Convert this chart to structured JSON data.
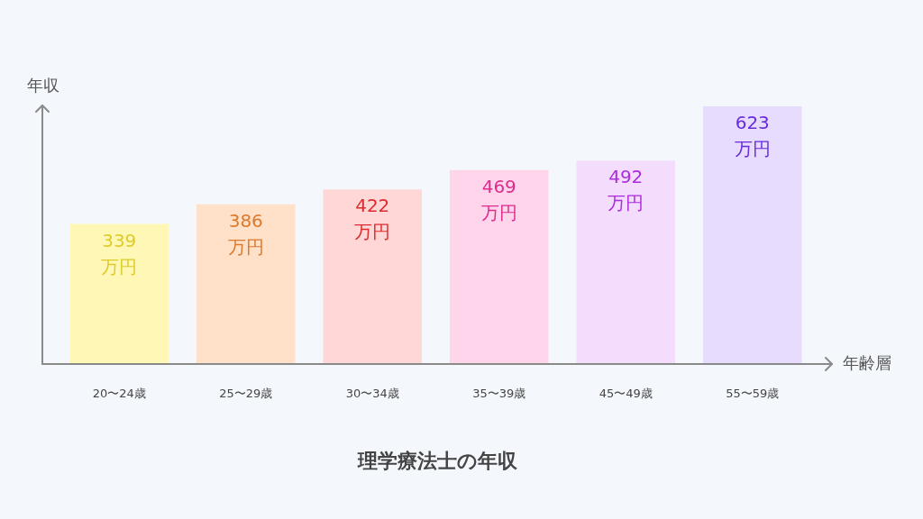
{
  "chart_data": {
    "type": "bar",
    "title": "理学療法士の年収",
    "xlabel": "年齢層",
    "ylabel": "年収",
    "categories": [
      "20〜24歳",
      "25〜29歳",
      "30〜34歳",
      "35〜39歳",
      "45〜49歳",
      "55〜59歳"
    ],
    "values": [
      339,
      386,
      422,
      469,
      492,
      623
    ],
    "colors": [
      "#fff7b5",
      "#ffe0c8",
      "#ffd7d7",
      "#ffd5ec",
      "#f3dcfc",
      "#e7dcfd"
    ],
    "value_labels": [
      "339\n万円",
      "386\n万円",
      "422\n万円",
      "469\n万円",
      "492\n万円",
      "623\n万円"
    ],
    "tick_labels": "x"
  }
}
